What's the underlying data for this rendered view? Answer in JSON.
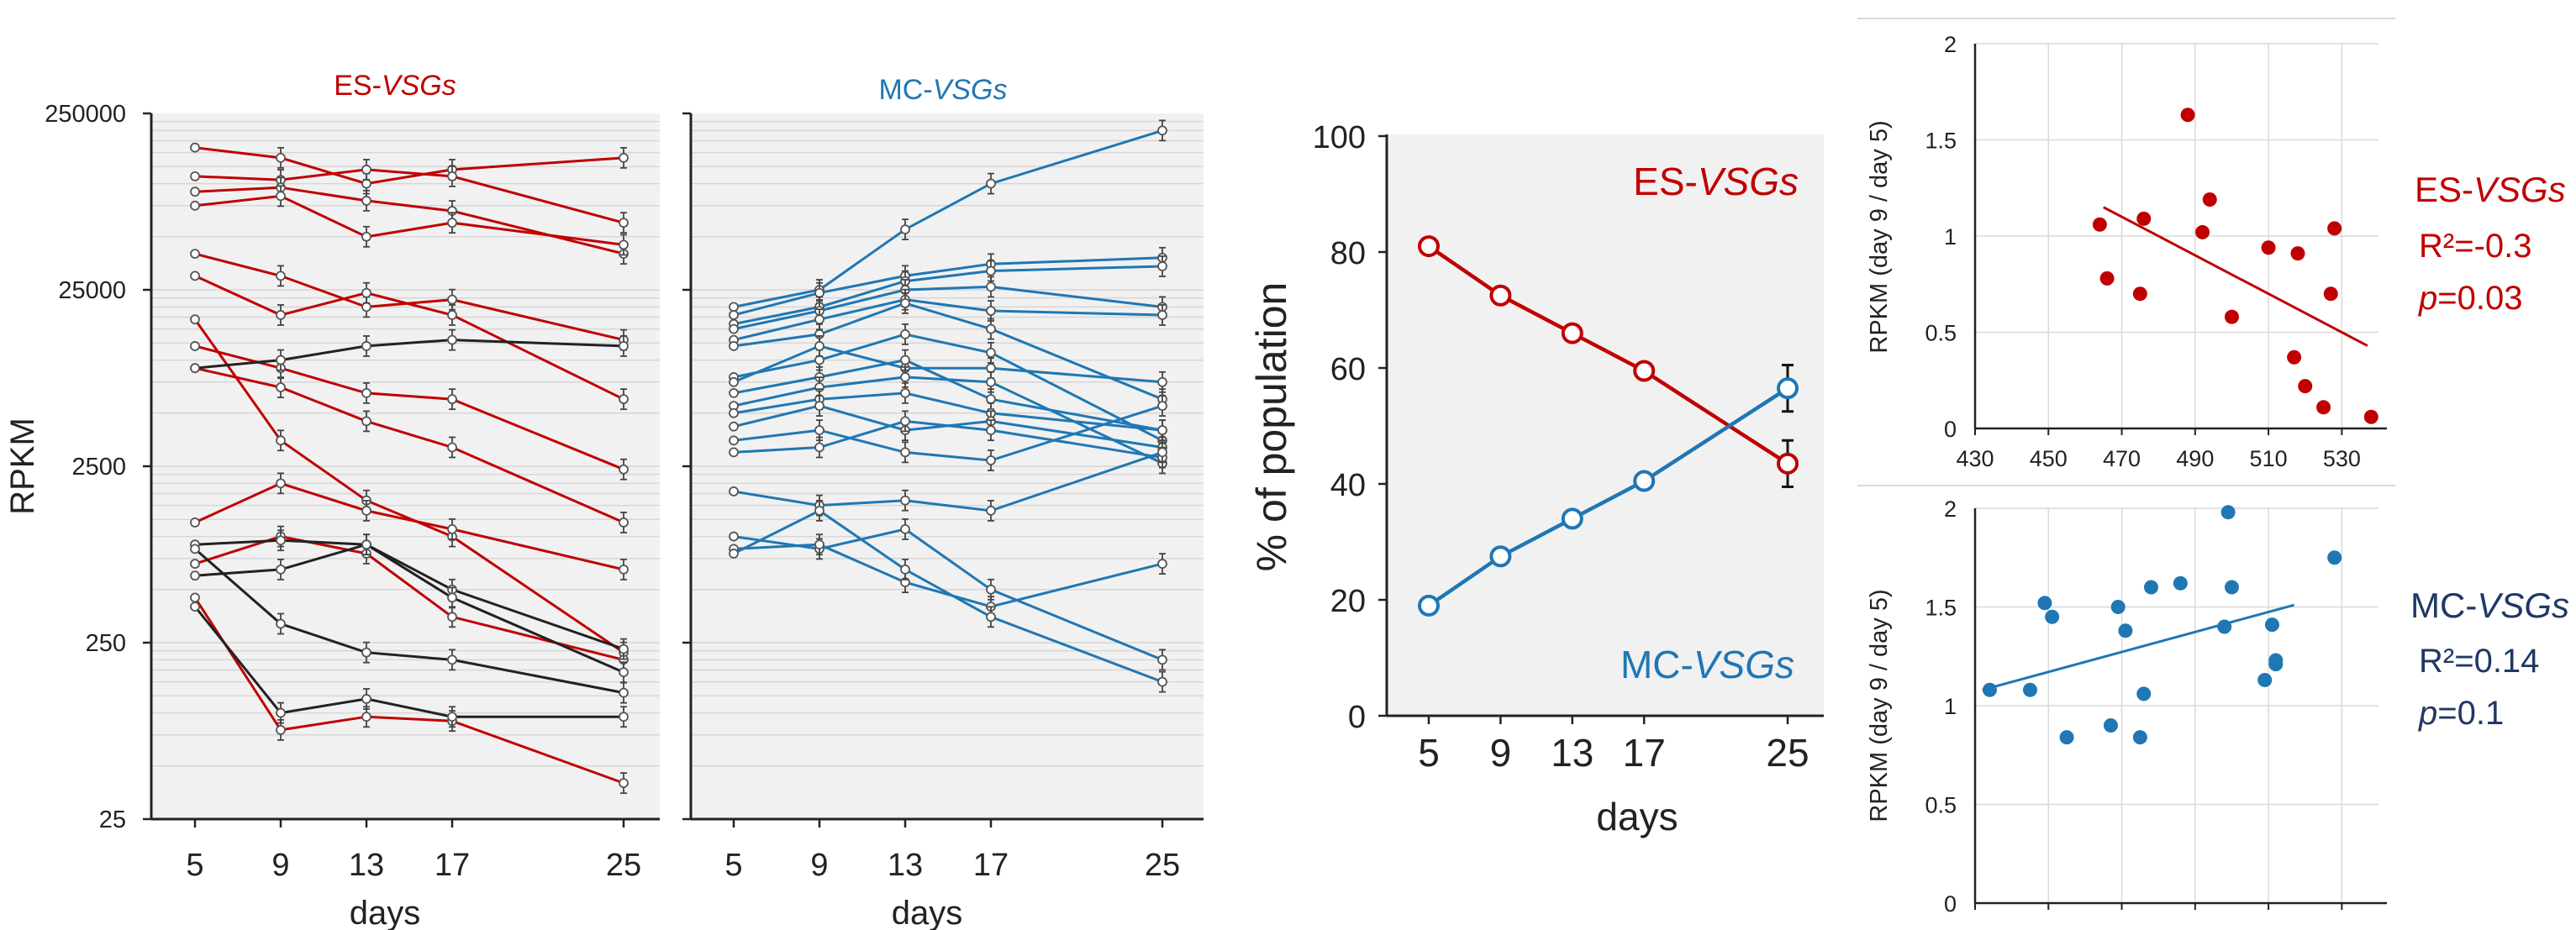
{
  "colors": {
    "es": "#c00000",
    "mc": "#1f77b4",
    "black": "#222222",
    "mc_stats": "#203864"
  },
  "chart_data": [
    {
      "type": "line",
      "panel": "rpkm-time-course",
      "title_left": {
        "prefix": "ES-",
        "italic": "VSGs"
      },
      "title_right": {
        "prefix": "MC-",
        "italic": "VSGs"
      },
      "ylabel": "RPKM",
      "xlabel": "days",
      "yscale": "log",
      "ylim": [
        25,
        250000
      ],
      "yticks": [
        "250000",
        "25000",
        "2500",
        "250",
        "25"
      ],
      "x": [
        5,
        9,
        13,
        17,
        25
      ],
      "xtick_labels": [
        "5",
        "9",
        "13",
        "17",
        "25"
      ],
      "es_series": [
        {
          "values": [
            160000,
            140000,
            100000,
            120000,
            140000
          ]
        },
        {
          "values": [
            110000,
            105000,
            120000,
            110000,
            60000
          ]
        },
        {
          "values": [
            90000,
            95000,
            80000,
            70000,
            40000
          ]
        },
        {
          "values": [
            75000,
            85000,
            50000,
            60000,
            45000
          ]
        },
        {
          "values": [
            40000,
            30000,
            20000,
            22000,
            13000
          ]
        },
        {
          "values": [
            30000,
            18000,
            24000,
            18000,
            6000
          ]
        },
        {
          "values": [
            12000,
            9000,
            6500,
            6000,
            2400
          ]
        },
        {
          "values": [
            9000,
            7000,
            4500,
            3200,
            1200
          ]
        },
        {
          "values": [
            17000,
            3500,
            1600,
            1000,
            220
          ]
        },
        {
          "values": [
            1200,
            2000,
            1400,
            1100,
            650
          ]
        },
        {
          "values": [
            700,
            1000,
            800,
            350,
            200
          ]
        },
        {
          "values": [
            450,
            80,
            95,
            90,
            40
          ]
        }
      ],
      "black_series": [
        {
          "values": [
            9000,
            10000,
            12000,
            13000,
            12000
          ]
        },
        {
          "values": [
            900,
            950,
            900,
            500,
            230
          ]
        },
        {
          "values": [
            600,
            650,
            900,
            450,
            170
          ]
        },
        {
          "values": [
            850,
            320,
            220,
            200,
            130
          ]
        },
        {
          "values": [
            400,
            100,
            120,
            95,
            95
          ]
        }
      ],
      "mc_series": [
        {
          "values": [
            20000,
            25000,
            55000,
            100000,
            200000
          ]
        },
        {
          "values": [
            18000,
            24000,
            30000,
            35000,
            38000
          ]
        },
        {
          "values": [
            16000,
            20000,
            28000,
            32000,
            34000
          ]
        },
        {
          "values": [
            15000,
            19000,
            25000,
            26000,
            20000
          ]
        },
        {
          "values": [
            13000,
            17000,
            22000,
            19000,
            18000
          ]
        },
        {
          "values": [
            12000,
            14000,
            21000,
            15000,
            6000
          ]
        },
        {
          "values": [
            8000,
            10000,
            14000,
            11000,
            3500
          ]
        },
        {
          "values": [
            7500,
            12000,
            9000,
            9000,
            7500
          ]
        },
        {
          "values": [
            6500,
            8000,
            10000,
            6000,
            4000
          ]
        },
        {
          "values": [
            5500,
            7000,
            8000,
            7500,
            2600
          ]
        },
        {
          "values": [
            5000,
            6000,
            6500,
            5000,
            4000
          ]
        },
        {
          "values": [
            4200,
            5500,
            4000,
            4500,
            3200
          ]
        },
        {
          "values": [
            3500,
            4000,
            3000,
            2700,
            5500
          ]
        },
        {
          "values": [
            3000,
            3200,
            4500,
            4000,
            2800
          ]
        },
        {
          "values": [
            1800,
            1500,
            1600,
            1400,
            3000
          ]
        },
        {
          "values": [
            1000,
            850,
            1100,
            500,
            200
          ]
        },
        {
          "values": [
            850,
            900,
            550,
            400,
            700
          ]
        },
        {
          "values": [
            800,
            1400,
            650,
            350,
            150
          ]
        }
      ]
    },
    {
      "type": "line",
      "panel": "percent-population",
      "ylabel": "% of population",
      "xlabel": "days",
      "ylim": [
        0,
        100
      ],
      "yticks": [
        0,
        20,
        40,
        60,
        80,
        100
      ],
      "x": [
        5,
        9,
        13,
        17,
        25
      ],
      "xtick_labels": [
        "5",
        "9",
        "13",
        "17",
        "25"
      ],
      "series": [
        {
          "name": "ES-VSGs",
          "label_prefix": "ES-",
          "label_italic": "VSGs",
          "values": [
            81,
            72.5,
            66,
            59.5,
            43.5
          ],
          "err": [
            0,
            0,
            0,
            0,
            4
          ]
        },
        {
          "name": "MC-VSGs",
          "label_prefix": "MC-",
          "label_italic": "VSGs",
          "values": [
            19,
            27.5,
            34,
            40.5,
            56.5
          ],
          "err": [
            0,
            0,
            0,
            0,
            4
          ]
        }
      ]
    },
    {
      "type": "scatter",
      "panel": "es-correlation",
      "ylabel": "RPKM (day 9 / day 5)",
      "xlim": [
        430,
        540
      ],
      "xticks": [
        430,
        450,
        470,
        490,
        510,
        530
      ],
      "ylim": [
        0,
        2
      ],
      "yticks": [
        "0",
        "0.5",
        "1",
        "1.5",
        "2"
      ],
      "points": [
        [
          464,
          1.06
        ],
        [
          466,
          0.78
        ],
        [
          476,
          1.09
        ],
        [
          475,
          0.7
        ],
        [
          488,
          1.63
        ],
        [
          492,
          1.02
        ],
        [
          494,
          1.19
        ],
        [
          500,
          0.58
        ],
        [
          510,
          0.94
        ],
        [
          517,
          0.37
        ],
        [
          518,
          0.91
        ],
        [
          520,
          0.22
        ],
        [
          525,
          0.11
        ],
        [
          527,
          0.7
        ],
        [
          528,
          1.04
        ],
        [
          538,
          0.06
        ]
      ],
      "trend": [
        [
          465,
          1.15
        ],
        [
          537,
          0.43
        ]
      ],
      "stats": {
        "label_prefix": "ES-",
        "label_italic": "VSGs",
        "r2": "R²=-0.3",
        "p_italic": "p",
        "p_rest": "=0.03"
      }
    },
    {
      "type": "scatter",
      "panel": "mc-correlation",
      "ylabel": "RPKM (day 9 / day 5)",
      "xlim": [
        430,
        540
      ],
      "ylim": [
        0,
        2
      ],
      "yticks": [
        "0",
        "0.5",
        "1",
        "1.5",
        "2"
      ],
      "points": [
        [
          434,
          1.08
        ],
        [
          445,
          1.08
        ],
        [
          449,
          1.52
        ],
        [
          451,
          1.45
        ],
        [
          455,
          0.84
        ],
        [
          467,
          0.9
        ],
        [
          469,
          1.5
        ],
        [
          471,
          1.38
        ],
        [
          475,
          0.84
        ],
        [
          476,
          1.06
        ],
        [
          478,
          1.6
        ],
        [
          486,
          1.62
        ],
        [
          499,
          1.98
        ],
        [
          498,
          1.4
        ],
        [
          500,
          1.6
        ],
        [
          509,
          1.13
        ],
        [
          511,
          1.41
        ],
        [
          512,
          1.21
        ],
        [
          512,
          1.23
        ],
        [
          528,
          1.75
        ]
      ],
      "trend": [
        [
          432,
          1.08
        ],
        [
          517,
          1.51
        ]
      ],
      "stats": {
        "label_prefix": "MC-",
        "label_italic": "VSGs",
        "r2": "R²=0.14",
        "p_italic": "p",
        "p_rest": "=0.1"
      }
    }
  ]
}
